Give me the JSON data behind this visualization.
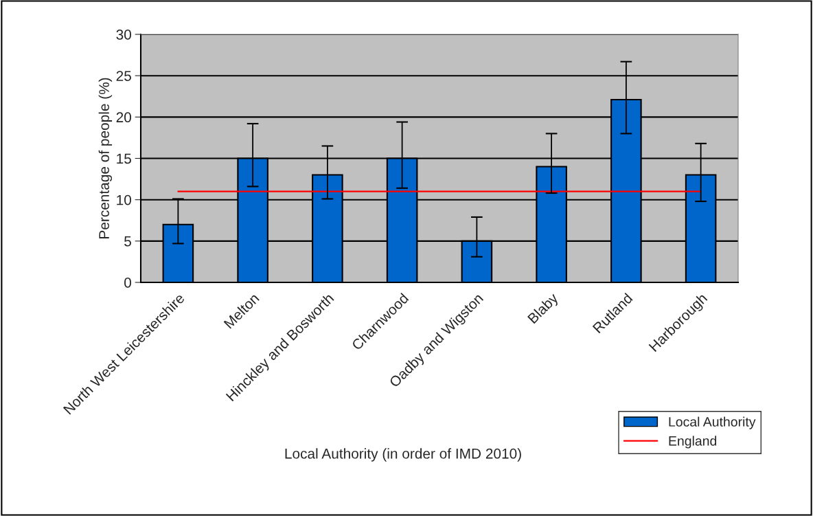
{
  "chart_data": {
    "type": "bar",
    "xlabel": "Local Authority (in order of IMD 2010)",
    "ylabel": "Percentage of people (%)",
    "categories": [
      "North West Leicestershire",
      "Melton",
      "Hinckley and Bosworth",
      "Charnwood",
      "Oadby and Wigston",
      "Blaby",
      "Rutland",
      "Harborough"
    ],
    "series": [
      {
        "name": "Local Authority",
        "color": "#0066cc",
        "values": [
          7,
          15,
          13,
          15,
          5,
          14,
          22.1,
          13
        ],
        "errors": [
          [
            4.7,
            10.1
          ],
          [
            11.6,
            19.2
          ],
          [
            10.1,
            16.5
          ],
          [
            11.4,
            19.4
          ],
          [
            3.1,
            7.9
          ],
          [
            10.8,
            18
          ],
          [
            18,
            26.7
          ],
          [
            9.8,
            16.8
          ]
        ]
      },
      {
        "name": "England",
        "type": "line",
        "color": "#ff0000",
        "values": [
          11,
          11,
          11,
          11,
          11,
          11,
          11,
          11
        ]
      }
    ],
    "ylim": [
      0,
      30
    ],
    "yticks": [
      0,
      5,
      10,
      15,
      20,
      25,
      30
    ],
    "grid": "y",
    "legend": "bottom right",
    "marker": "none",
    "line_style": "solid"
  }
}
